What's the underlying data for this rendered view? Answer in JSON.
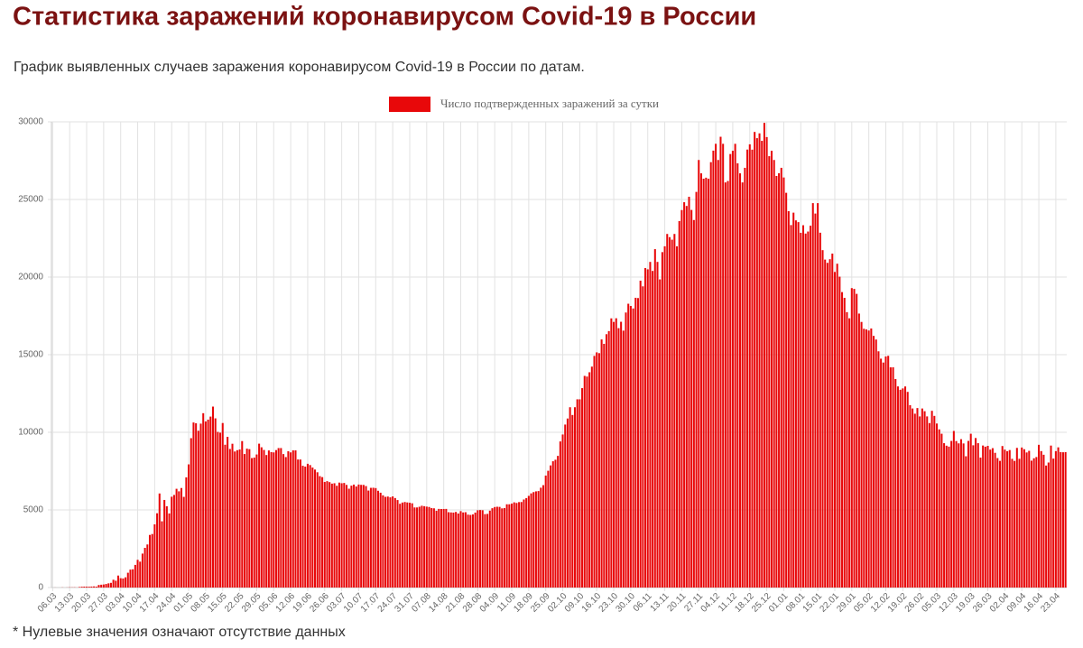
{
  "chart_data": {
    "type": "bar",
    "title": "Статистика заражений коронавирусом Covid-19 в России",
    "subtitle": "График выявленных случаев заражения коронавирусом Covid-19 в России по датам.",
    "categories": [
      "06.03",
      null,
      null,
      null,
      null,
      null,
      null,
      "13.03",
      null,
      null,
      null,
      null,
      null,
      null,
      "20.03",
      null,
      null,
      null,
      null,
      null,
      null,
      "27.03",
      null,
      null,
      null,
      null,
      null,
      null,
      "03.04",
      null,
      null,
      null,
      null,
      null,
      null,
      "10.04",
      null,
      null,
      null,
      null,
      null,
      null,
      "17.04",
      null,
      null,
      null,
      null,
      null,
      null,
      "24.04",
      null,
      null,
      null,
      null,
      null,
      null,
      "01.05",
      null,
      null,
      null,
      null,
      null,
      null,
      "08.05",
      null,
      null,
      null,
      null,
      null,
      null,
      "15.05",
      null,
      null,
      null,
      null,
      null,
      null,
      "22.05",
      null,
      null,
      null,
      null,
      null,
      null,
      "29.05",
      null,
      null,
      null,
      null,
      null,
      null,
      "05.06",
      null,
      null,
      null,
      null,
      null,
      null,
      "12.06",
      null,
      null,
      null,
      null,
      null,
      null,
      "19.06",
      null,
      null,
      null,
      null,
      null,
      null,
      "26.06",
      null,
      null,
      null,
      null,
      null,
      null,
      "03.07",
      null,
      null,
      null,
      null,
      null,
      null,
      "10.07",
      null,
      null,
      null,
      null,
      null,
      null,
      "17.07",
      null,
      null,
      null,
      null,
      null,
      null,
      "24.07",
      null,
      null,
      null,
      null,
      null,
      null,
      "31.07",
      null,
      null,
      null,
      null,
      null,
      null,
      "07.08",
      null,
      null,
      null,
      null,
      null,
      null,
      "14.08",
      null,
      null,
      null,
      null,
      null,
      null,
      "21.08",
      null,
      null,
      null,
      null,
      null,
      null,
      "28.08",
      null,
      null,
      null,
      null,
      null,
      null,
      "04.09",
      null,
      null,
      null,
      null,
      null,
      null,
      "11.09",
      null,
      null,
      null,
      null,
      null,
      null,
      "18.09",
      null,
      null,
      null,
      null,
      null,
      null,
      "25.09",
      null,
      null,
      null,
      null,
      null,
      null,
      "02.10",
      null,
      null,
      null,
      null,
      null,
      null,
      "09.10",
      null,
      null,
      null,
      null,
      null,
      null,
      "16.10",
      null,
      null,
      null,
      null,
      null,
      null,
      "23.10",
      null,
      null,
      null,
      null,
      null,
      null,
      "30.10",
      null,
      null,
      null,
      null,
      null,
      null,
      "06.11",
      null,
      null,
      null,
      null,
      null,
      null,
      "13.11",
      null,
      null,
      null,
      null,
      null,
      null,
      "20.11",
      null,
      null,
      null,
      null,
      null,
      null,
      "27.11",
      null,
      null,
      null,
      null,
      null,
      null,
      "04.12",
      null,
      null,
      null,
      null,
      null,
      null,
      "11.12",
      null,
      null,
      null,
      null,
      null,
      null,
      "18.12",
      null,
      null,
      null,
      null,
      null,
      null,
      "25.12",
      null,
      null,
      null,
      null,
      null,
      null,
      "01.01",
      null,
      null,
      null,
      null,
      null,
      null,
      "08.01",
      null,
      null,
      null,
      null,
      null,
      null,
      "15.01",
      null,
      null,
      null,
      null,
      null,
      null,
      "22.01",
      null,
      null,
      null,
      null,
      null,
      null,
      "29.01",
      null,
      null,
      null,
      null,
      null,
      null,
      "05.02",
      null,
      null,
      null,
      null,
      null,
      null,
      "12.02",
      null,
      null,
      null,
      null,
      null,
      null,
      "19.02",
      null,
      null,
      null,
      null,
      null,
      null,
      "26.02",
      null,
      null,
      null,
      null,
      null,
      null,
      "05.03",
      null,
      null,
      null,
      null,
      null,
      null,
      "12.03",
      null,
      null,
      null,
      null,
      null,
      null,
      "19.03",
      null,
      null,
      null,
      null,
      null,
      null,
      "26.03",
      null,
      null,
      null,
      null,
      null,
      null,
      "02.04",
      null,
      null,
      null,
      null,
      null,
      null,
      "09.04",
      null,
      null,
      null,
      null,
      null,
      null,
      "16.04",
      null,
      null,
      null,
      null,
      null,
      null,
      "23.04",
      null,
      null,
      null,
      null
    ],
    "series": [
      {
        "name": "Число подтвержденных заражений за сутки",
        "color": "#e8080a",
        "values": [
          0,
          3,
          0,
          0,
          7,
          0,
          6,
          14,
          11,
          15,
          4,
          33,
          52,
          59,
          53,
          54,
          62,
          71,
          57,
          163,
          182,
          196,
          228,
          270,
          302,
          501,
          440,
          771,
          601,
          582,
          658,
          954,
          1154,
          1175,
          1459,
          1786,
          1667,
          2186,
          2558,
          2774,
          3388,
          3448,
          4070,
          4785,
          6060,
          4268,
          5642,
          5236,
          4774,
          5849,
          5966,
          6361,
          6198,
          6411,
          5841,
          7099,
          7933,
          9623,
          10633,
          10581,
          10102,
          10559,
          11231,
          10699,
          10817,
          11012,
          11656,
          10899,
          10028,
          9974,
          10598,
          9200,
          9709,
          8926,
          9263,
          8764,
          8849,
          8894,
          9434,
          8599,
          8946,
          8915,
          8338,
          8371,
          8572,
          9268,
          9035,
          8863,
          8536,
          8831,
          8726,
          8705,
          8855,
          8984,
          8985,
          8595,
          8404,
          8779,
          8706,
          8835,
          8835,
          8248,
          8246,
          7843,
          7790,
          7972,
          7889,
          7728,
          7600,
          7425,
          7176,
          7113,
          6800,
          6852,
          6791,
          6693,
          6719,
          6556,
          6760,
          6718,
          6736,
          6611,
          6368,
          6562,
          6632,
          6509,
          6635,
          6615,
          6611,
          6537,
          6248,
          6422,
          6428,
          6406,
          6234,
          6109,
          5940,
          5842,
          5862,
          5811,
          5871,
          5765,
          5635,
          5395,
          5475,
          5509,
          5482,
          5462,
          5427,
          5159,
          5159,
          5204,
          5267,
          5241,
          5212,
          5189,
          5118,
          5102,
          4945,
          5066,
          5057,
          5061,
          5065,
          4852,
          4839,
          4828,
          4870,
          4767,
          4921,
          4838,
          4852,
          4696,
          4676,
          4711,
          4829,
          4979,
          4993,
          4980,
          4729,
          4744,
          4952,
          5110,
          5185,
          5205,
          5195,
          5099,
          5118,
          5363,
          5363,
          5406,
          5488,
          5449,
          5504,
          5509,
          5670,
          5762,
          5905,
          6065,
          6148,
          6196,
          6215,
          6431,
          6595,
          7212,
          7523,
          7867,
          8135,
          8232,
          8481,
          9412,
          9859,
          10499,
          10888,
          11615,
          11115,
          11615,
          12126,
          12126,
          12846,
          13634,
          13592,
          13868,
          14231,
          14922,
          15150,
          15099,
          15982,
          15700,
          16319,
          16521,
          17340,
          17111,
          17347,
          16710,
          17121,
          16550,
          17717,
          18283,
          18140,
          17979,
          18665,
          18648,
          19768,
          19404,
          20582,
          20498,
          20977,
          20396,
          21798,
          20977,
          19851,
          21608,
          21983,
          22778,
          22572,
          22410,
          22778,
          21983,
          23610,
          24318,
          24822,
          24581,
          25173,
          24326,
          23675,
          25487,
          27543,
          26683,
          26338,
          26402,
          26338,
          27403,
          28145,
          28585,
          27543,
          29039,
          28585,
          26097,
          26190,
          27927,
          28137,
          28585,
          27328,
          26683,
          26097,
          27039,
          28214,
          28552,
          28209,
          29350,
          28948,
          29258,
          28776,
          29935,
          29018,
          27787,
          28137,
          27543,
          26513,
          26689,
          27039,
          26416,
          25429,
          24246,
          23351,
          24150,
          23652,
          23541,
          22851,
          23339,
          22802,
          22934,
          23309,
          24763,
          24092,
          24763,
          22857,
          21734,
          21127,
          20917,
          21152,
          21513,
          20330,
          20861,
          20026,
          19032,
          18662,
          17741,
          17345,
          19290,
          19238,
          18919,
          17648,
          17110,
          16671,
          16627,
          16558,
          16688,
          16211,
          15977,
          15218,
          14744,
          14494,
          14887,
          14928,
          14185,
          14188,
          13433,
          12956,
          12742,
          12828,
          12953,
          12604,
          11749,
          11534,
          11198,
          11562,
          11022,
          11534,
          11359,
          11024,
          10595,
          11385,
          11057,
          10565,
          10189,
          9908,
          9299,
          9138,
          9079,
          9445,
          10086,
          9437,
          9288,
          9558,
          9282,
          8457,
          9445,
          9907,
          9164,
          9632,
          9299,
          8369,
          9149,
          9073,
          9128,
          8885,
          8979,
          8679,
          8341,
          8162,
          9116,
          8884,
          8779,
          8857,
          8292,
          8159,
          8996,
          8294,
          9021,
          8910,
          8702,
          8806,
          8173,
          8328,
          8407,
          9195,
          8789,
          8554,
          7859,
          8053,
          9145,
          8307,
          8788,
          9031,
          8726,
          8714,
          8726
        ]
      }
    ],
    "ylim": [
      0,
      30000
    ],
    "yticks": [
      0,
      5000,
      10000,
      15000,
      20000,
      25000,
      30000
    ],
    "grid": true,
    "legend": "top"
  },
  "footnote": "* Нулевые значения означают отсутствие данных"
}
